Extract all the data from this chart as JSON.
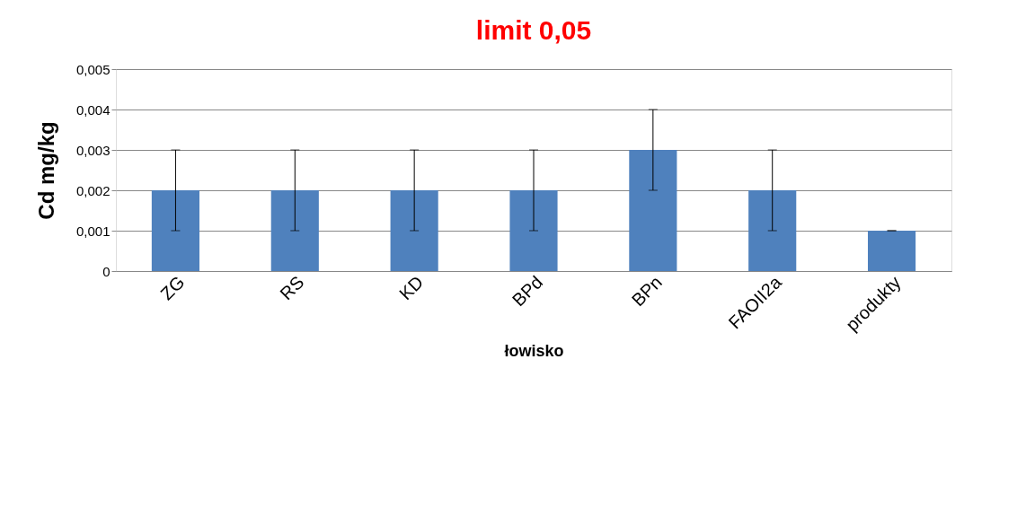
{
  "chart_data": {
    "type": "bar",
    "title": "limit 0,05",
    "xlabel": "łowisko",
    "ylabel": "Cd mg/kg",
    "categories": [
      "ZG",
      "RS",
      "KD",
      "BPd",
      "BPn",
      "FAOII2a",
      "produkty"
    ],
    "values": [
      0.002,
      0.002,
      0.002,
      0.002,
      0.003,
      0.002,
      0.001
    ],
    "errors": [
      0.001,
      0.001,
      0.001,
      0.001,
      0.001,
      0.001,
      0
    ],
    "color": "#4f81bd",
    "ylim": [
      0,
      0.005
    ],
    "yticks": [
      0,
      {
        "value": 0.001,
        "label": "0,001"
      },
      {
        "value": 0.002,
        "label": "0,002"
      },
      {
        "value": 0.003,
        "label": "0,003"
      },
      {
        "value": 0.004,
        "label": "0,004"
      },
      {
        "value": 0.005,
        "label": "0,005"
      }
    ],
    "grid": "y"
  }
}
